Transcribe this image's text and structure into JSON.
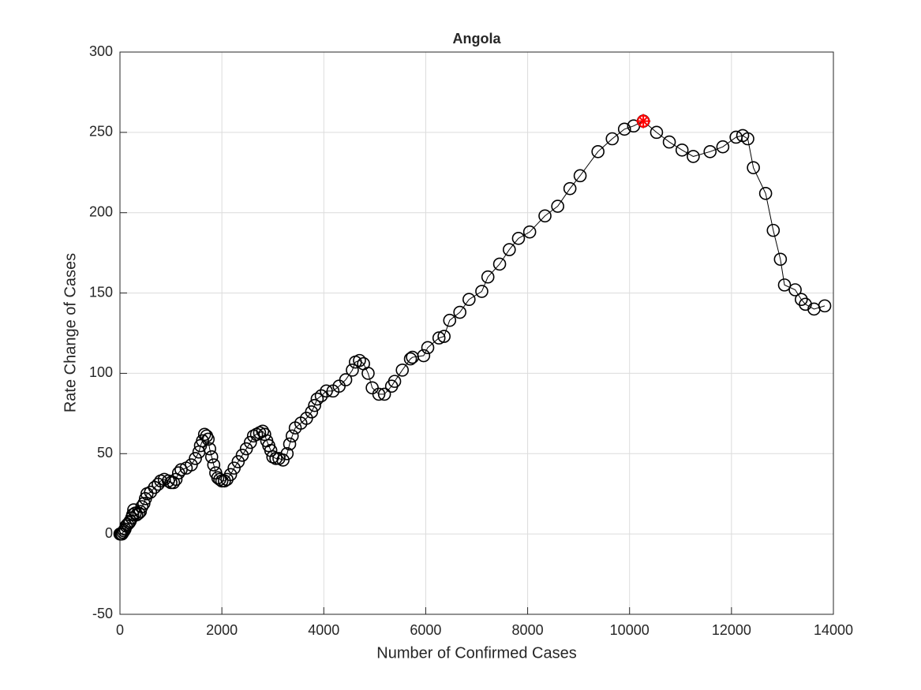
{
  "chart_data": {
    "type": "line",
    "title": "Angola",
    "xlabel": "Number of Confirmed Cases",
    "ylabel": "Rate Change of Cases",
    "x": [
      0,
      10,
      20,
      40,
      60,
      80,
      100,
      120,
      150,
      180,
      200,
      230,
      250,
      270,
      300,
      330,
      370,
      400,
      430,
      470,
      500,
      530,
      600,
      680,
      750,
      800,
      870,
      950,
      1000,
      1050,
      1100,
      1150,
      1200,
      1300,
      1400,
      1480,
      1550,
      1580,
      1620,
      1660,
      1700,
      1730,
      1760,
      1800,
      1840,
      1880,
      1920,
      1960,
      2000,
      2050,
      2100,
      2170,
      2240,
      2320,
      2400,
      2480,
      2560,
      2620,
      2680,
      2740,
      2800,
      2840,
      2880,
      2920,
      2960,
      3000,
      3060,
      3120,
      3200,
      3280,
      3330,
      3380,
      3440,
      3550,
      3660,
      3760,
      3820,
      3870,
      3950,
      4050,
      4180,
      4300,
      4430,
      4560,
      4620,
      4700,
      4780,
      4870,
      4950,
      5080,
      5190,
      5330,
      5390,
      5540,
      5700,
      5740,
      5960,
      6040,
      6260,
      6360,
      6470,
      6670,
      6850,
      7100,
      7220,
      7450,
      7640,
      7820,
      8040,
      8340,
      8590,
      8830,
      9030,
      9380,
      9660,
      9900,
      10080,
      10270,
      10530,
      10780,
      11030,
      11250,
      11580,
      11830,
      12090,
      12220,
      12320,
      12430,
      12670,
      12820,
      12960,
      13040,
      13250,
      13370,
      13450,
      13620,
      13830
    ],
    "values": [
      0,
      0,
      0,
      0,
      1,
      2,
      3,
      5,
      6,
      7,
      8,
      10,
      12,
      15,
      13,
      12,
      13,
      14,
      17,
      19,
      22,
      25,
      26,
      29,
      31,
      33,
      34,
      33,
      32,
      32,
      34,
      38,
      40,
      41,
      43,
      47,
      51,
      55,
      58,
      62,
      61,
      59,
      53,
      48,
      43,
      38,
      35,
      34,
      33,
      33,
      34,
      37,
      41,
      45,
      49,
      53,
      57,
      61,
      62,
      63,
      64,
      62,
      58,
      55,
      52,
      48,
      47,
      47,
      46,
      50,
      56,
      61,
      66,
      69,
      72,
      76,
      80,
      84,
      86,
      89,
      89,
      92,
      96,
      102,
      107,
      108,
      106,
      100,
      91,
      87,
      87,
      92,
      95,
      102,
      109,
      110,
      111,
      116,
      122,
      123,
      133,
      138,
      146,
      151,
      160,
      168,
      177,
      184,
      188,
      198,
      204,
      215,
      223,
      238,
      246,
      252,
      254,
      257,
      250,
      244,
      239,
      235,
      238,
      241,
      247,
      248,
      246,
      228,
      212,
      189,
      171,
      155,
      152,
      146,
      143,
      140,
      142
    ],
    "color": "#000000",
    "highlight": {
      "x": 10270,
      "y": 257,
      "color": "#ff0000"
    },
    "xlim": [
      0,
      14000
    ],
    "xticks": [
      0,
      2000,
      4000,
      6000,
      8000,
      10000,
      12000,
      14000
    ],
    "ylim": [
      -50,
      300
    ],
    "yticks": [
      -50,
      0,
      50,
      100,
      150,
      200,
      250,
      300
    ],
    "grid": true
  }
}
